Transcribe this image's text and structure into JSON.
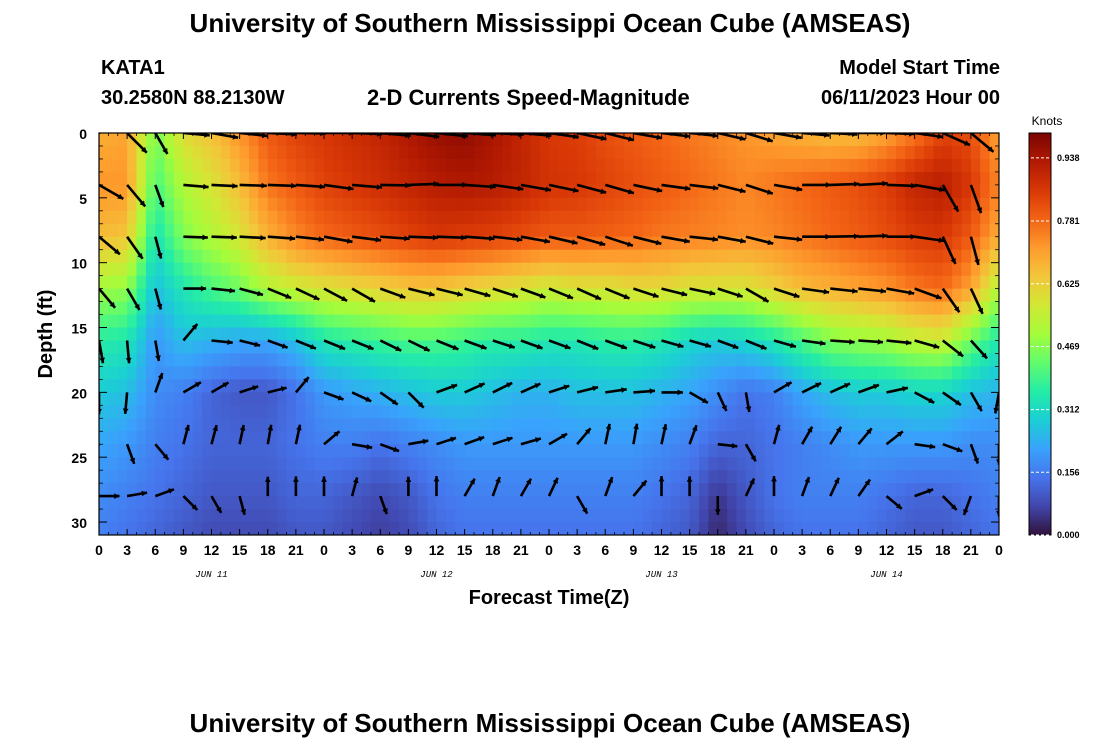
{
  "header": {
    "title": "University of Southern Mississippi Ocean Cube (AMSEAS)",
    "station": "KATA1",
    "location": "30.2580N  88.2130W",
    "subtitle": "2-D Currents Speed-Magnitude",
    "model_start_label": "Model Start Time",
    "model_start_value": "06/11/2023 Hour 00"
  },
  "footer": {
    "title": "University of Southern Mississippi Ocean Cube (AMSEAS)"
  },
  "chart_data": {
    "type": "heatmap",
    "xlabel": "Forecast Time(Z)",
    "ylabel": "Depth (ft)",
    "x_hours_range": [
      0,
      96
    ],
    "x_tick_labels": [
      "0",
      "3",
      "6",
      "9",
      "12",
      "15",
      "18",
      "21",
      "0",
      "3",
      "6",
      "9",
      "12",
      "15",
      "18",
      "21",
      "0",
      "3",
      "6",
      "9",
      "12",
      "15",
      "18",
      "21",
      "0",
      "3",
      "6",
      "9",
      "12",
      "15",
      "18",
      "21",
      "0"
    ],
    "day_labels": [
      {
        "label": "JUN 11",
        "hour": 12
      },
      {
        "label": "JUN 12",
        "hour": 36
      },
      {
        "label": "JUN 13",
        "hour": 60
      },
      {
        "label": "JUN 14",
        "hour": 84
      }
    ],
    "ylim": [
      0,
      31
    ],
    "y_tick_labels": [
      "0",
      "5",
      "10",
      "15",
      "20",
      "25",
      "30"
    ],
    "y_tick_values": [
      0,
      5,
      10,
      15,
      20,
      25,
      30
    ],
    "colorbar": {
      "units": "Knots",
      "min": 0.0,
      "max": 1.0,
      "tick_labels": [
        "0.000",
        "0.156",
        "0.312",
        "0.469",
        "0.625",
        "0.781",
        "0.938"
      ],
      "tick_values": [
        0.0,
        0.156,
        0.312,
        0.469,
        0.625,
        0.781,
        0.938
      ],
      "colors": [
        "#30123b",
        "#4145ab",
        "#4675ed",
        "#39a2fc",
        "#1bcfd4",
        "#24eca6",
        "#61fc6c",
        "#a4fc3b",
        "#d1e834",
        "#f3c63a",
        "#fe9b2d",
        "#f36315",
        "#d93806",
        "#b11901",
        "#7a0402"
      ]
    },
    "speed_grid": {
      "hours": [
        0,
        3,
        6,
        9,
        12,
        15,
        18,
        21,
        24,
        27,
        30,
        33,
        36,
        39,
        42,
        45,
        48,
        51,
        54,
        57,
        60,
        63,
        66,
        69,
        72,
        75,
        78,
        81,
        84,
        87,
        90,
        93,
        96
      ],
      "depths_ft": [
        0,
        4,
        8,
        12,
        16,
        20,
        24,
        28,
        31
      ],
      "knots": [
        [
          0.68,
          0.7,
          0.45,
          0.6,
          0.65,
          0.72,
          0.8,
          0.84,
          0.86,
          0.88,
          0.9,
          0.93,
          0.96,
          0.97,
          0.94,
          0.9,
          0.86,
          0.85,
          0.82,
          0.8,
          0.78,
          0.76,
          0.74,
          0.72,
          0.7,
          0.68,
          0.66,
          0.66,
          0.7,
          0.76,
          0.84,
          0.82,
          0.7
        ],
        [
          0.72,
          0.72,
          0.4,
          0.52,
          0.58,
          0.66,
          0.76,
          0.8,
          0.84,
          0.86,
          0.88,
          0.9,
          0.92,
          0.93,
          0.92,
          0.9,
          0.87,
          0.86,
          0.84,
          0.82,
          0.8,
          0.78,
          0.76,
          0.74,
          0.76,
          0.78,
          0.8,
          0.82,
          0.85,
          0.9,
          0.92,
          0.86,
          0.74
        ],
        [
          0.66,
          0.64,
          0.33,
          0.46,
          0.52,
          0.58,
          0.68,
          0.74,
          0.78,
          0.8,
          0.82,
          0.84,
          0.86,
          0.85,
          0.84,
          0.82,
          0.8,
          0.8,
          0.79,
          0.78,
          0.76,
          0.75,
          0.74,
          0.73,
          0.74,
          0.76,
          0.78,
          0.8,
          0.82,
          0.85,
          0.86,
          0.8,
          0.68
        ],
        [
          0.5,
          0.48,
          0.26,
          0.34,
          0.4,
          0.44,
          0.52,
          0.56,
          0.58,
          0.6,
          0.62,
          0.64,
          0.64,
          0.62,
          0.6,
          0.58,
          0.56,
          0.58,
          0.58,
          0.6,
          0.6,
          0.58,
          0.58,
          0.58,
          0.62,
          0.66,
          0.68,
          0.7,
          0.72,
          0.76,
          0.78,
          0.7,
          0.52
        ],
        [
          0.36,
          0.34,
          0.2,
          0.26,
          0.24,
          0.22,
          0.22,
          0.26,
          0.34,
          0.36,
          0.38,
          0.4,
          0.4,
          0.38,
          0.36,
          0.36,
          0.34,
          0.34,
          0.36,
          0.36,
          0.34,
          0.3,
          0.28,
          0.3,
          0.34,
          0.4,
          0.46,
          0.48,
          0.5,
          0.54,
          0.56,
          0.44,
          0.34
        ],
        [
          0.28,
          0.26,
          0.18,
          0.16,
          0.12,
          0.1,
          0.1,
          0.14,
          0.2,
          0.22,
          0.24,
          0.26,
          0.28,
          0.28,
          0.26,
          0.24,
          0.24,
          0.26,
          0.26,
          0.26,
          0.24,
          0.22,
          0.18,
          0.14,
          0.16,
          0.22,
          0.26,
          0.28,
          0.28,
          0.3,
          0.3,
          0.26,
          0.24
        ],
        [
          0.22,
          0.2,
          0.16,
          0.14,
          0.12,
          0.12,
          0.12,
          0.14,
          0.16,
          0.16,
          0.14,
          0.16,
          0.18,
          0.2,
          0.2,
          0.2,
          0.2,
          0.2,
          0.2,
          0.2,
          0.18,
          0.16,
          0.12,
          0.12,
          0.14,
          0.16,
          0.18,
          0.2,
          0.2,
          0.2,
          0.2,
          0.18,
          0.18
        ],
        [
          0.18,
          0.16,
          0.14,
          0.12,
          0.1,
          0.1,
          0.1,
          0.12,
          0.12,
          0.1,
          0.08,
          0.1,
          0.14,
          0.16,
          0.16,
          0.16,
          0.16,
          0.16,
          0.16,
          0.16,
          0.14,
          0.12,
          0.05,
          0.1,
          0.14,
          0.16,
          0.16,
          0.16,
          0.14,
          0.12,
          0.12,
          0.14,
          0.16
        ],
        [
          0.16,
          0.14,
          0.12,
          0.1,
          0.08,
          0.08,
          0.08,
          0.1,
          0.1,
          0.08,
          0.06,
          0.08,
          0.12,
          0.14,
          0.14,
          0.14,
          0.14,
          0.14,
          0.14,
          0.14,
          0.12,
          0.1,
          0.03,
          0.08,
          0.12,
          0.14,
          0.14,
          0.14,
          0.12,
          0.1,
          0.1,
          0.12,
          0.14
        ]
      ]
    },
    "vectors": {
      "hours": [
        0,
        3,
        6,
        9,
        12,
        15,
        18,
        21,
        24,
        27,
        30,
        33,
        36,
        39,
        42,
        45,
        48,
        51,
        54,
        57,
        60,
        63,
        66,
        69,
        72,
        75,
        78,
        81,
        84,
        87,
        90,
        93,
        96
      ],
      "depths_ft": [
        0,
        4,
        8,
        12,
        16,
        20,
        24,
        28
      ],
      "direction_deg": [
        [
          60,
          135,
          150,
          95,
          100,
          96,
          93,
          91,
          90,
          92,
          95,
          97,
          96,
          94,
          93,
          95,
          98,
          102,
          104,
          100,
          97,
          96,
          103,
          107,
          100,
          95,
          93,
          90,
          92,
          98,
          114,
          130,
          125
        ],
        [
          120,
          140,
          160,
          95,
          93,
          92,
          92,
          94,
          98,
          95,
          91,
          88,
          90,
          94,
          98,
          100,
          102,
          105,
          106,
          102,
          98,
          97,
          104,
          108,
          100,
          90,
          88,
          87,
          92,
          100,
          150,
          160,
          115
        ],
        [
          130,
          145,
          165,
          92,
          92,
          93,
          94,
          96,
          100,
          97,
          94,
          92,
          92,
          94,
          96,
          100,
          103,
          106,
          108,
          104,
          100,
          96,
          100,
          104,
          96,
          90,
          89,
          88,
          90,
          98,
          155,
          165,
          120
        ],
        [
          140,
          150,
          165,
          90,
          96,
          105,
          112,
          115,
          118,
          120,
          110,
          104,
          104,
          106,
          108,
          110,
          112,
          114,
          112,
          108,
          104,
          102,
          108,
          120,
          108,
          98,
          96,
          96,
          100,
          110,
          145,
          155,
          140
        ],
        [
          170,
          175,
          170,
          40,
          96,
          104,
          110,
          112,
          112,
          112,
          116,
          116,
          112,
          110,
          108,
          110,
          110,
          112,
          110,
          108,
          106,
          106,
          110,
          112,
          106,
          98,
          94,
          94,
          96,
          106,
          128,
          138,
          120
        ],
        [
          180,
          185,
          20,
          60,
          60,
          72,
          76,
          40,
          110,
          115,
          125,
          135,
          70,
          66,
          64,
          66,
          72,
          76,
          82,
          86,
          90,
          120,
          155,
          170,
          60,
          64,
          66,
          70,
          78,
          118,
          125,
          150,
          190
        ],
        [
          210,
          160,
          140,
          15,
          15,
          12,
          10,
          12,
          50,
          100,
          110,
          80,
          72,
          70,
          72,
          74,
          60,
          40,
          12,
          10,
          12,
          20,
          96,
          150,
          15,
          30,
          32,
          40,
          52,
          98,
          110,
          160,
          180
        ],
        [
          90,
          80,
          70,
          135,
          150,
          165,
          0,
          0,
          0,
          15,
          160,
          0,
          0,
          30,
          20,
          30,
          25,
          150,
          20,
          40,
          0,
          0,
          180,
          25,
          0,
          20,
          25,
          35,
          130,
          70,
          135,
          200,
          180
        ]
      ],
      "speed_scale_knots": [
        [
          0.68,
          0.7,
          0.45,
          0.6,
          0.65,
          0.72,
          0.8,
          0.84,
          0.86,
          0.88,
          0.9,
          0.93,
          0.96,
          0.97,
          0.94,
          0.9,
          0.86,
          0.85,
          0.82,
          0.8,
          0.78,
          0.76,
          0.74,
          0.72,
          0.7,
          0.68,
          0.66,
          0.66,
          0.7,
          0.76,
          0.84,
          0.82,
          0.7
        ],
        [
          0.72,
          0.72,
          0.4,
          0.52,
          0.58,
          0.66,
          0.76,
          0.8,
          0.84,
          0.86,
          0.88,
          0.9,
          0.92,
          0.93,
          0.92,
          0.9,
          0.87,
          0.86,
          0.84,
          0.82,
          0.8,
          0.78,
          0.76,
          0.74,
          0.76,
          0.78,
          0.8,
          0.82,
          0.85,
          0.9,
          0.92,
          0.86,
          0.74
        ],
        [
          0.66,
          0.64,
          0.33,
          0.46,
          0.52,
          0.58,
          0.68,
          0.74,
          0.78,
          0.8,
          0.82,
          0.84,
          0.86,
          0.85,
          0.84,
          0.82,
          0.8,
          0.8,
          0.79,
          0.78,
          0.76,
          0.75,
          0.74,
          0.73,
          0.74,
          0.76,
          0.78,
          0.8,
          0.82,
          0.85,
          0.86,
          0.8,
          0.68
        ],
        [
          0.5,
          0.48,
          0.26,
          0.34,
          0.4,
          0.44,
          0.52,
          0.56,
          0.58,
          0.6,
          0.62,
          0.64,
          0.64,
          0.62,
          0.6,
          0.58,
          0.56,
          0.58,
          0.58,
          0.6,
          0.6,
          0.58,
          0.58,
          0.58,
          0.62,
          0.66,
          0.68,
          0.7,
          0.72,
          0.76,
          0.78,
          0.7,
          0.52
        ],
        [
          0.36,
          0.34,
          0.2,
          0.26,
          0.24,
          0.22,
          0.22,
          0.26,
          0.34,
          0.36,
          0.38,
          0.4,
          0.4,
          0.38,
          0.36,
          0.36,
          0.34,
          0.34,
          0.36,
          0.36,
          0.34,
          0.3,
          0.28,
          0.3,
          0.34,
          0.4,
          0.46,
          0.48,
          0.5,
          0.54,
          0.56,
          0.44,
          0.34
        ],
        [
          0.28,
          0.26,
          0.18,
          0.16,
          0.12,
          0.1,
          0.1,
          0.14,
          0.2,
          0.22,
          0.24,
          0.26,
          0.28,
          0.28,
          0.26,
          0.24,
          0.24,
          0.26,
          0.26,
          0.26,
          0.24,
          0.22,
          0.18,
          0.14,
          0.16,
          0.22,
          0.26,
          0.28,
          0.28,
          0.3,
          0.3,
          0.26,
          0.24
        ],
        [
          0.22,
          0.2,
          0.16,
          0.14,
          0.12,
          0.12,
          0.12,
          0.14,
          0.16,
          0.16,
          0.14,
          0.16,
          0.18,
          0.2,
          0.2,
          0.2,
          0.2,
          0.2,
          0.2,
          0.2,
          0.18,
          0.16,
          0.12,
          0.12,
          0.14,
          0.16,
          0.18,
          0.2,
          0.2,
          0.2,
          0.2,
          0.18,
          0.18
        ],
        [
          0.18,
          0.16,
          0.14,
          0.12,
          0.1,
          0.1,
          0.1,
          0.12,
          0.12,
          0.1,
          0.08,
          0.1,
          0.14,
          0.16,
          0.16,
          0.16,
          0.16,
          0.16,
          0.16,
          0.16,
          0.14,
          0.12,
          0.05,
          0.1,
          0.14,
          0.16,
          0.16,
          0.16,
          0.14,
          0.12,
          0.12,
          0.14,
          0.16
        ]
      ]
    }
  }
}
